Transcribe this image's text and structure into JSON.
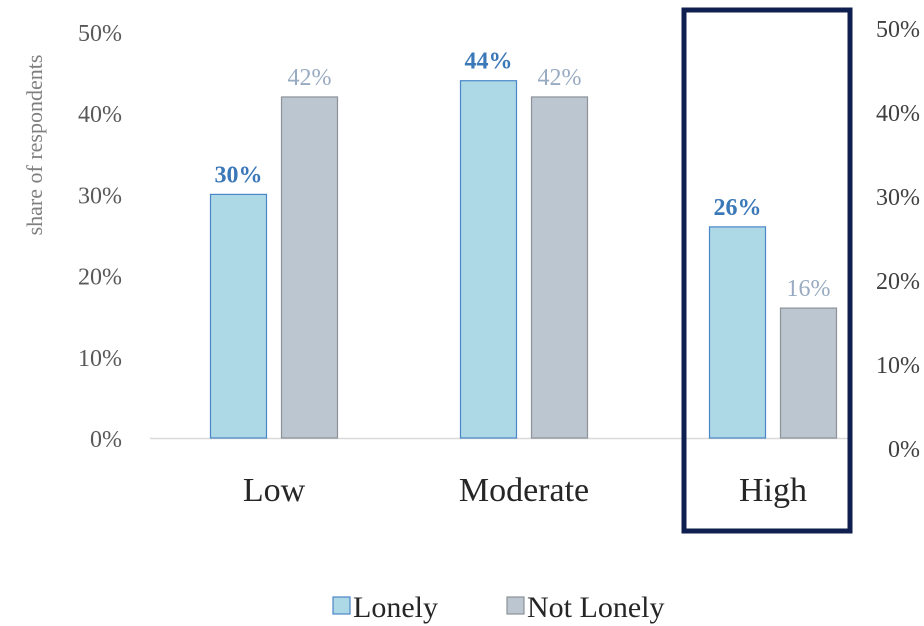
{
  "chart_data": {
    "type": "bar",
    "categories": [
      "Low",
      "Moderate",
      "High"
    ],
    "series": [
      {
        "name": "Lonely",
        "values": [
          30,
          44,
          26
        ],
        "labels": [
          "30%",
          "44%",
          "26%"
        ],
        "color": "#add8e6",
        "stroke": "#4a86c8",
        "label_color": "#3b78b8"
      },
      {
        "name": "Not Lonely",
        "values": [
          42,
          42,
          16
        ],
        "labels": [
          "42%",
          "42%",
          "16%"
        ],
        "color": "#bcc6d0",
        "stroke": "#8c9298",
        "label_color": "#98abc2"
      }
    ],
    "ylabel": "share of respondents",
    "ylim": [
      0,
      50
    ],
    "yticks": [
      "0%",
      "10%",
      "20%",
      "30%",
      "40%",
      "50%"
    ],
    "right_yticks": [
      "0%",
      "10%",
      "20%",
      "30%",
      "40%",
      "50%"
    ],
    "highlighted_category": "High",
    "highlight_color": "#0f1f4f",
    "legend_position": "bottom",
    "grid": false
  }
}
